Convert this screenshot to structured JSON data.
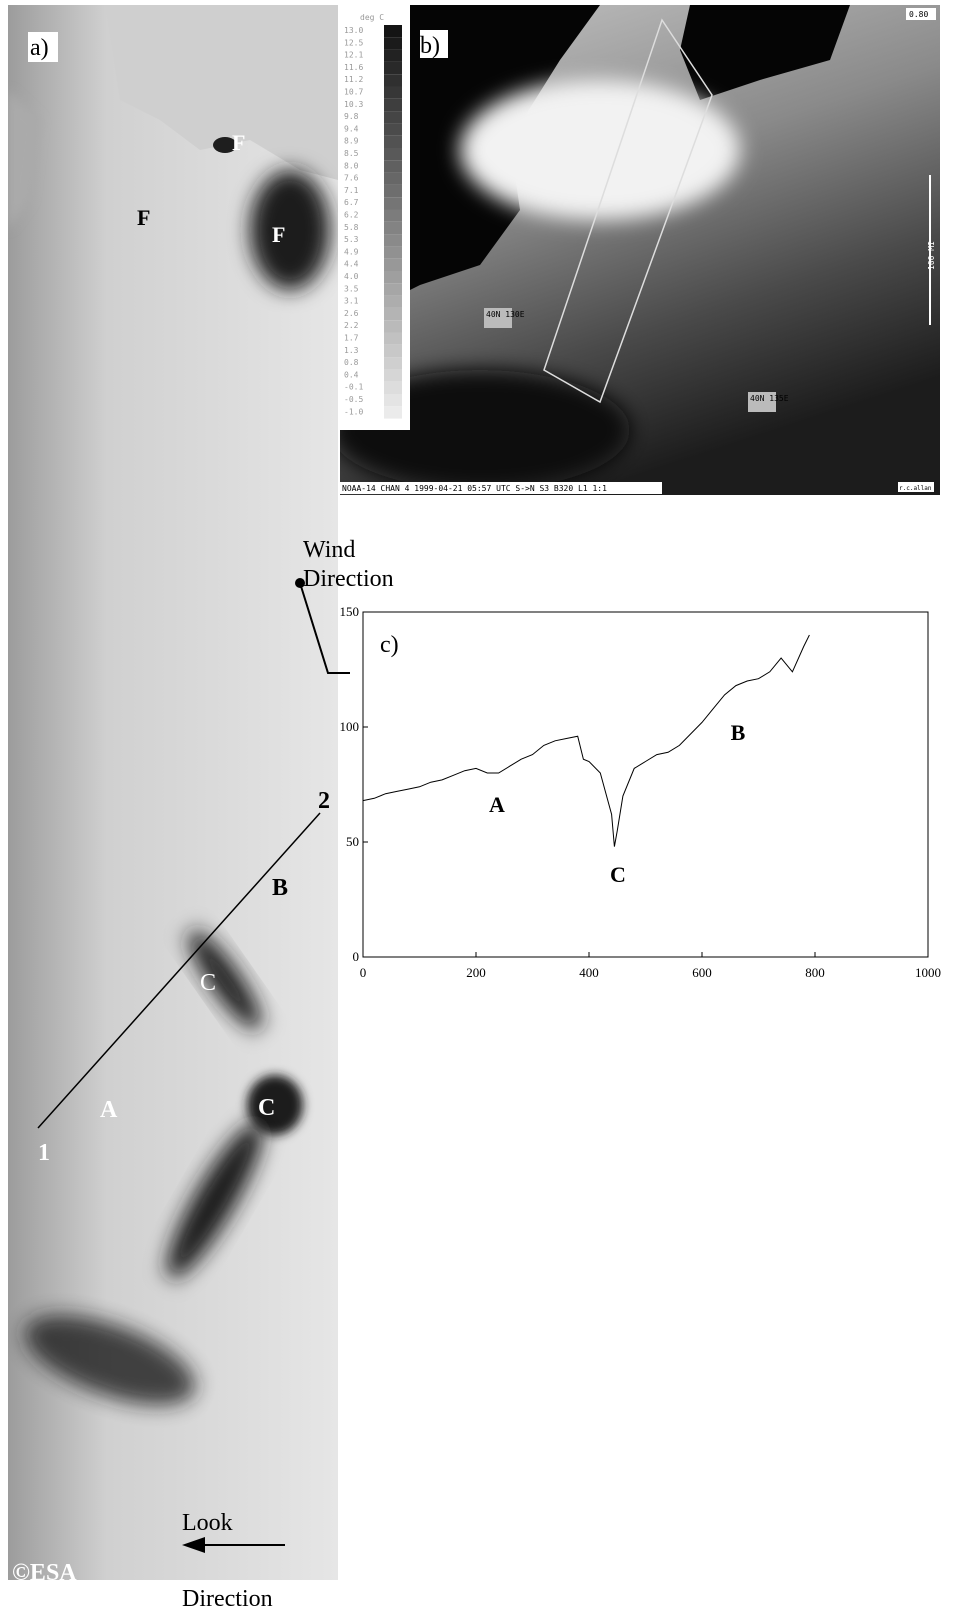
{
  "panel_a": {
    "label": "a)",
    "features": [
      "F",
      "F",
      "F"
    ],
    "regions": [
      "A",
      "B",
      "C",
      "C"
    ],
    "transect_ends": [
      "1",
      "2"
    ],
    "wind": [
      "Wind",
      "Direction"
    ],
    "credit": "©ESA",
    "look": [
      "Look",
      "Direction"
    ]
  },
  "panel_b": {
    "label": "b)",
    "colorbar_title": "deg C",
    "colorbar_labels": [
      "13.0",
      "12.5",
      "12.1",
      "11.6",
      "11.2",
      "10.7",
      "10.3",
      "9.8",
      "9.4",
      "8.9",
      "8.5",
      "8.0",
      "7.6",
      "7.1",
      "6.7",
      "6.2",
      "5.8",
      "5.3",
      "4.9",
      "4.4",
      "4.0",
      "3.5",
      "3.1",
      "2.6",
      "2.2",
      "1.7",
      "1.3",
      "0.8",
      "0.4",
      "-0.1",
      "-0.5",
      "-1.0"
    ],
    "scale_value": "0.80",
    "scale_bar": "100 MI",
    "grid_labels": [
      "40N 130E",
      "40N 135E"
    ],
    "footer": "NOAA-14 CHAN 4 1999-04-21 05:57 UTC S->N  S3 B320 L1 1:1",
    "credit": "r.c.allan"
  },
  "chart_data": {
    "type": "line",
    "title": "c)",
    "annotations": [
      "A",
      "B",
      "C"
    ],
    "x": [
      0,
      20,
      40,
      60,
      80,
      100,
      120,
      140,
      160,
      180,
      200,
      220,
      240,
      260,
      280,
      300,
      320,
      340,
      360,
      380,
      390,
      400,
      420,
      440,
      445,
      450,
      460,
      480,
      500,
      520,
      540,
      560,
      580,
      600,
      620,
      640,
      660,
      680,
      700,
      720,
      740,
      760,
      780,
      790
    ],
    "values": [
      68,
      69,
      71,
      72,
      73,
      74,
      76,
      77,
      79,
      81,
      82,
      80,
      80,
      83,
      86,
      88,
      92,
      94,
      95,
      96,
      86,
      85,
      80,
      62,
      48,
      55,
      70,
      82,
      85,
      88,
      89,
      92,
      97,
      102,
      108,
      114,
      118,
      120,
      121,
      124,
      130,
      124,
      135,
      140
    ],
    "color": "#000000",
    "xlim": [
      0,
      1000
    ],
    "xticks": [
      0,
      200,
      400,
      600,
      800,
      1000
    ],
    "ylim": [
      0,
      150
    ],
    "yticks": [
      0,
      50,
      100,
      150
    ]
  }
}
